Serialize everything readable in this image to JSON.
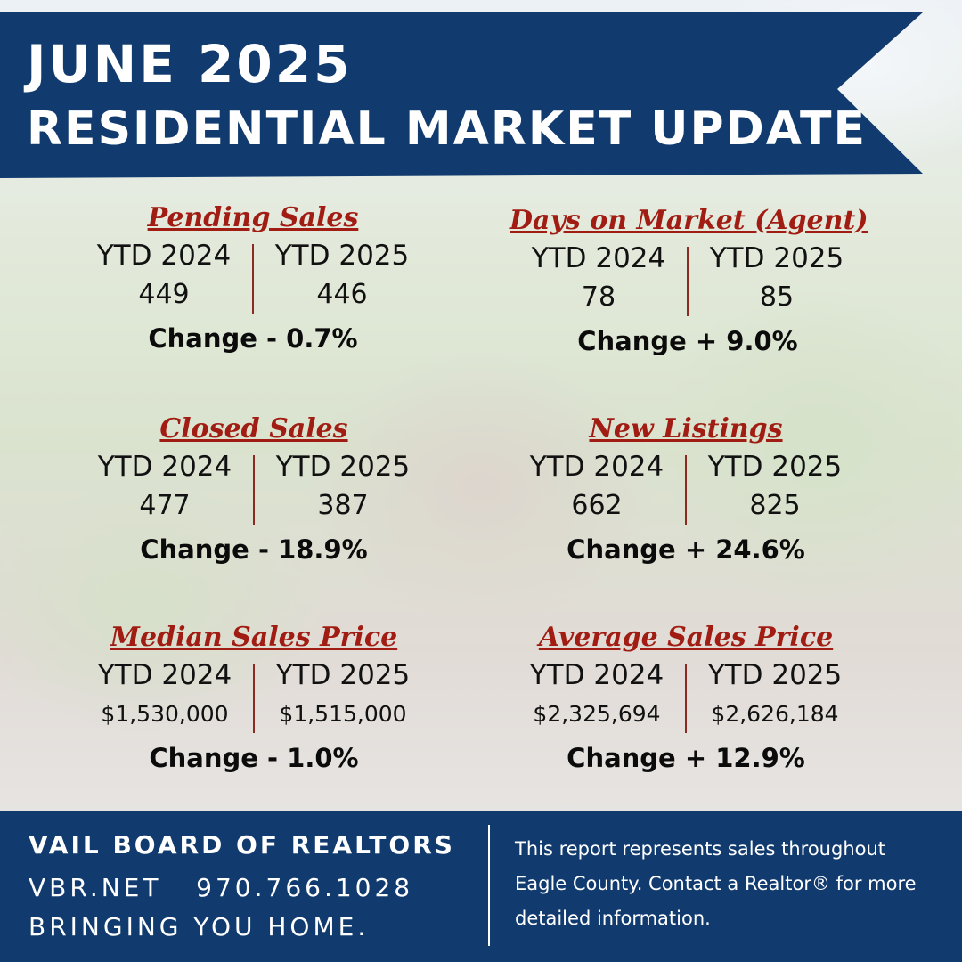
{
  "title": {
    "line1": "JUNE 2025",
    "line2": "RESIDENTIAL MARKET UPDATE"
  },
  "colors": {
    "banner": "#113b6e",
    "heading": "#a11d14",
    "divider": "#8a2a20",
    "text": "#111111",
    "footer": "#113b6e"
  },
  "stats": [
    {
      "heading": "Pending Sales",
      "left_label": "YTD 2024",
      "right_label": "YTD 2025",
      "left_value": "449",
      "right_value": "446",
      "change": "Change - 0.7%"
    },
    {
      "heading": "Days on Market (Agent)",
      "left_label": "YTD 2024",
      "right_label": "YTD 2025",
      "left_value": "78",
      "right_value": "85",
      "change": "Change + 9.0%"
    },
    {
      "heading": "Closed Sales",
      "left_label": "YTD 2024",
      "right_label": "YTD 2025",
      "left_value": "477",
      "right_value": "387",
      "change": "Change - 18.9%"
    },
    {
      "heading": "New Listings",
      "left_label": "YTD 2024",
      "right_label": "YTD 2025",
      "left_value": "662",
      "right_value": "825",
      "change": "Change + 24.6%"
    },
    {
      "heading": "Median Sales Price",
      "left_label": "YTD 2024",
      "right_label": "YTD 2025",
      "left_value": "$1,530,000",
      "right_value": "$1,515,000",
      "change": "Change - 1.0%"
    },
    {
      "heading": "Average Sales Price",
      "left_label": "YTD 2024",
      "right_label": "YTD 2025",
      "left_value": "$2,325,694",
      "right_value": "$2,626,184",
      "change": "Change + 12.9%"
    }
  ],
  "footer": {
    "org": "VAIL BOARD OF REALTORS",
    "contact": "VBR.NET   970.766.1028",
    "tagline": "BRINGING YOU HOME.",
    "note": "This report represents sales throughout Eagle County. Contact a Realtor® for more detailed information."
  }
}
